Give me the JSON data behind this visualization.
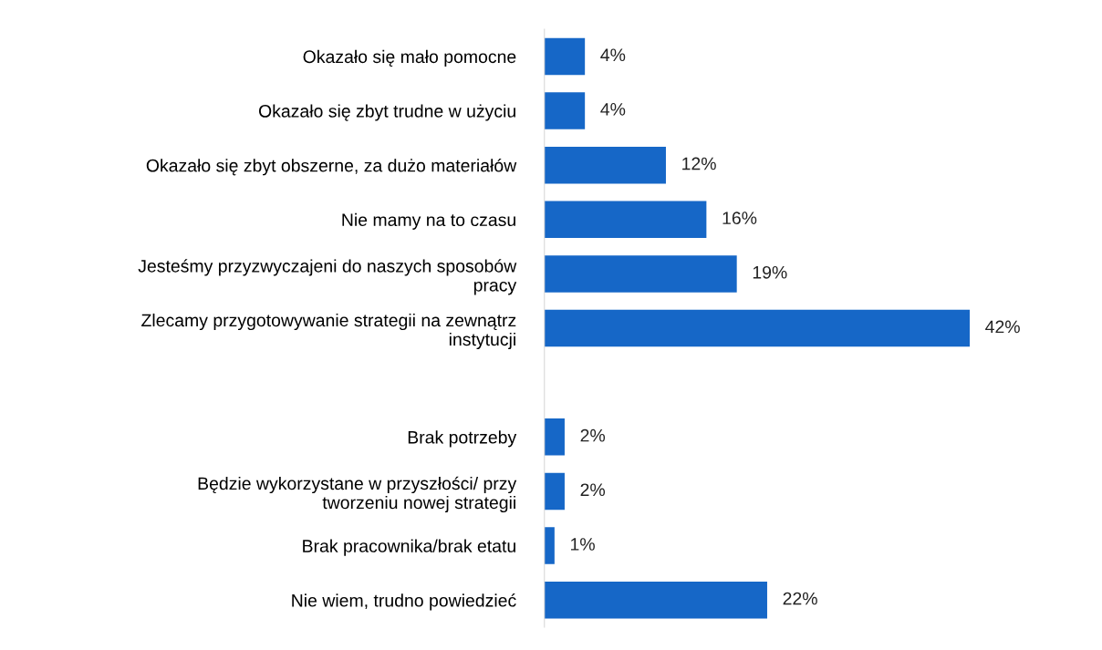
{
  "chart_data": {
    "type": "bar",
    "orientation": "horizontal",
    "categories": [
      "Okazało się mało pomocne",
      "Okazało się zbyt trudne w użyciu",
      "Okazało się zbyt obszerne, za dużo materiałów",
      "Nie mamy na to czasu",
      "Jesteśmy przyzwyczajeni do naszych sposobów\npracy",
      "Zlecamy przygotowywanie strategii na zewnątrz\ninstytucji",
      null,
      "Brak potrzeby",
      "Będzie wykorzystane w przyszłości/ przy\ntworzeniu nowej strategii",
      "Brak pracownika/brak etatu",
      "Nie wiem, trudno powiedzieć"
    ],
    "values": [
      4,
      4,
      12,
      16,
      19,
      42,
      null,
      2,
      2,
      1,
      22
    ],
    "value_labels": [
      "4%",
      "4%",
      "12%",
      "16%",
      "19%",
      "42%",
      null,
      "2%",
      "2%",
      "1%",
      "22%"
    ],
    "color": "#1667c7",
    "grid": false,
    "legend": false,
    "tick_labels": "y"
  }
}
